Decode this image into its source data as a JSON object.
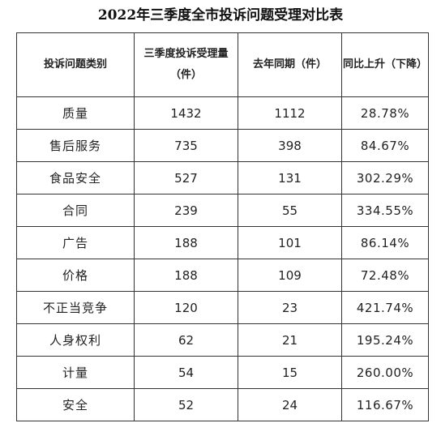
{
  "title": "2022年三季度全市投诉问题受理对比表",
  "columns": [
    "投诉问题类别",
    "三季度投诉受理量（件）",
    "去年同期（件）",
    "同比上升（下降）"
  ],
  "rows": [
    {
      "category": "质量",
      "q3": "1432",
      "last_year": "1112",
      "change": "28.78%"
    },
    {
      "category": "售后服务",
      "q3": "735",
      "last_year": "398",
      "change": "84.67%"
    },
    {
      "category": "食品安全",
      "q3": "527",
      "last_year": "131",
      "change": "302.29%"
    },
    {
      "category": "合同",
      "q3": "239",
      "last_year": "55",
      "change": "334.55%"
    },
    {
      "category": "广告",
      "q3": "188",
      "last_year": "101",
      "change": "86.14%"
    },
    {
      "category": "价格",
      "q3": "188",
      "last_year": "109",
      "change": "72.48%"
    },
    {
      "category": "不正当竞争",
      "q3": "120",
      "last_year": "23",
      "change": "421.74%"
    },
    {
      "category": "人身权利",
      "q3": "62",
      "last_year": "21",
      "change": "195.24%"
    },
    {
      "category": "计量",
      "q3": "54",
      "last_year": "15",
      "change": "260.00%"
    },
    {
      "category": "安全",
      "q3": "52",
      "last_year": "24",
      "change": "116.67%"
    }
  ]
}
